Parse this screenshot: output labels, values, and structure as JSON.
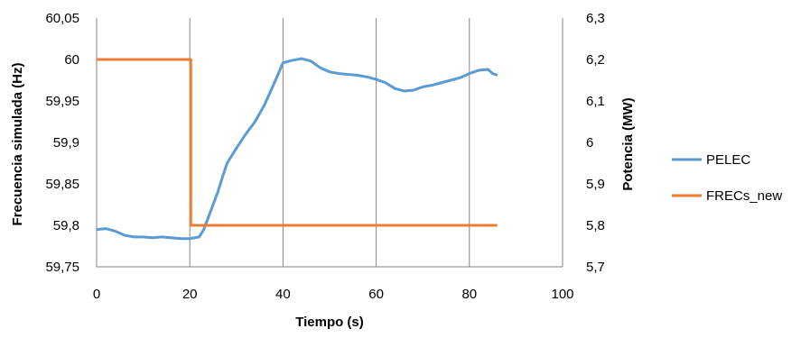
{
  "chart_data": {
    "type": "line",
    "title": "",
    "xlabel": "Tiempo (s)",
    "ylabel_left": "Frecuencia simulada (Hz)",
    "ylabel_right": "Potencia (MW)",
    "xlim": [
      0,
      100
    ],
    "ylim_left": [
      59.75,
      60.05
    ],
    "ylim_right": [
      5.7,
      6.3
    ],
    "x_ticks": [
      "0",
      "20",
      "40",
      "60",
      "80",
      "100"
    ],
    "y_left_ticks": [
      "59,75",
      "59,8",
      "59,85",
      "59,9",
      "59,95",
      "60",
      "60,05"
    ],
    "y_right_ticks": [
      "5,7",
      "5,8",
      "5,9",
      "6",
      "6,1",
      "6,2",
      "6,3"
    ],
    "grid": "vertical",
    "legend_position": "right",
    "series": [
      {
        "name": "PELEC",
        "axis": "left",
        "color": "#5b9bd5",
        "points": [
          [
            0,
            59.795
          ],
          [
            2,
            59.796
          ],
          [
            4,
            59.793
          ],
          [
            6,
            59.788
          ],
          [
            8,
            59.786
          ],
          [
            10,
            59.786
          ],
          [
            12,
            59.785
          ],
          [
            14,
            59.786
          ],
          [
            16,
            59.785
          ],
          [
            18,
            59.784
          ],
          [
            20,
            59.784
          ],
          [
            22,
            59.786
          ],
          [
            23,
            59.795
          ],
          [
            24,
            59.81
          ],
          [
            25,
            59.825
          ],
          [
            26,
            59.84
          ],
          [
            27,
            59.858
          ],
          [
            28,
            59.875
          ],
          [
            30,
            59.893
          ],
          [
            32,
            59.91
          ],
          [
            34,
            59.925
          ],
          [
            36,
            59.945
          ],
          [
            38,
            59.97
          ],
          [
            40,
            59.996
          ],
          [
            42,
            59.999
          ],
          [
            44,
            60.001
          ],
          [
            46,
            59.998
          ],
          [
            48,
            59.99
          ],
          [
            50,
            59.985
          ],
          [
            52,
            59.983
          ],
          [
            54,
            59.982
          ],
          [
            56,
            59.981
          ],
          [
            58,
            59.979
          ],
          [
            60,
            59.976
          ],
          [
            62,
            59.972
          ],
          [
            64,
            59.965
          ],
          [
            66,
            59.962
          ],
          [
            68,
            59.963
          ],
          [
            70,
            59.967
          ],
          [
            72,
            59.969
          ],
          [
            74,
            59.972
          ],
          [
            76,
            59.975
          ],
          [
            78,
            59.978
          ],
          [
            80,
            59.983
          ],
          [
            82,
            59.987
          ],
          [
            84,
            59.988
          ],
          [
            85,
            59.983
          ],
          [
            86,
            59.981
          ]
        ]
      },
      {
        "name": "FRECs_new",
        "axis": "right",
        "color": "#ed7d31",
        "points": [
          [
            0,
            6.2
          ],
          [
            20.2,
            6.2
          ],
          [
            20.2,
            5.8
          ],
          [
            86,
            5.8
          ]
        ]
      }
    ]
  }
}
